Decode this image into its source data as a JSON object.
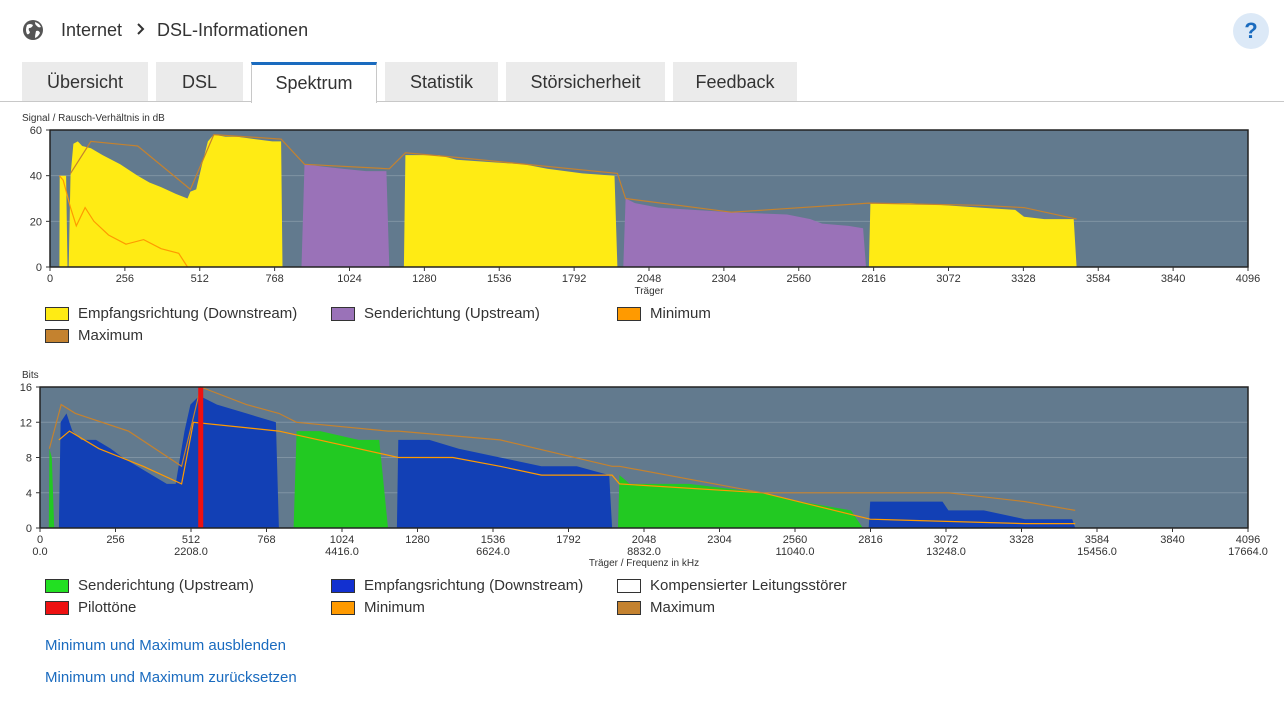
{
  "header": {
    "breadcrumb_root": "Internet",
    "breadcrumb_page": "DSL-Informationen",
    "help_label": "?"
  },
  "tabs": [
    {
      "label": "Übersicht",
      "active": false
    },
    {
      "label": "DSL",
      "active": false
    },
    {
      "label": "Spektrum",
      "active": true
    },
    {
      "label": "Statistik",
      "active": false
    },
    {
      "label": "Störsicherheit",
      "active": false
    },
    {
      "label": "Feedback",
      "active": false
    }
  ],
  "colors": {
    "plot_bg": "#627a8e",
    "downstream_snr": "#ffeb14",
    "upstream_snr": "#9a72b8",
    "minimum": "#ff9a00",
    "maximum": "#c4822f",
    "bits_upstream": "#22c922",
    "bits_downstream": "#1240b5",
    "pilot": "#ee1111",
    "compensated": "#ffffff",
    "link": "#1a6bbf"
  },
  "chart_data": [
    {
      "type": "area",
      "ylabel": "Signal / Rausch-Verhältnis in dB",
      "xlabel": "Träger",
      "xlim": [
        0,
        4096
      ],
      "ylim": [
        0,
        60
      ],
      "yticks": [
        0,
        20,
        40,
        60
      ],
      "xticks": [
        0,
        256,
        512,
        768,
        1024,
        1280,
        1536,
        1792,
        2048,
        2304,
        2560,
        2816,
        3072,
        3328,
        3584,
        3840,
        4096
      ],
      "series": [
        {
          "name": "Empfangsrichtung (Downstream)",
          "color": "#ffeb14",
          "points": [
            [
              32,
              0
            ],
            [
              33,
              40
            ],
            [
              55,
              40
            ],
            [
              60,
              0
            ],
            [
              64,
              0
            ],
            [
              70,
              40
            ],
            [
              80,
              54
            ],
            [
              95,
              55
            ],
            [
              110,
              53
            ],
            [
              140,
              52
            ],
            [
              180,
              49
            ],
            [
              240,
              45
            ],
            [
              300,
              40
            ],
            [
              340,
              37
            ],
            [
              380,
              35
            ],
            [
              430,
              32
            ],
            [
              470,
              30
            ],
            [
              480,
              33
            ],
            [
              500,
              34
            ],
            [
              520,
              45
            ],
            [
              540,
              55
            ],
            [
              560,
              58
            ],
            [
              600,
              57
            ],
            [
              640,
              57
            ],
            [
              700,
              56
            ],
            [
              760,
              55
            ],
            [
              790,
              55
            ],
            [
              795,
              0
            ]
          ]
        },
        {
          "name": "Senderichtung (Upstream)",
          "color": "#9a72b8",
          "points": [
            [
              860,
              0
            ],
            [
              870,
              45
            ],
            [
              930,
              44
            ],
            [
              1000,
              43
            ],
            [
              1080,
              42
            ],
            [
              1150,
              42
            ],
            [
              1160,
              0
            ]
          ]
        },
        {
          "name": "Empfangsrichtung (Downstream)",
          "color": "#ffeb14",
          "points": [
            [
              1210,
              0
            ],
            [
              1215,
              49
            ],
            [
              1330,
              49
            ],
            [
              1390,
              47
            ],
            [
              1500,
              46
            ],
            [
              1620,
              45
            ],
            [
              1700,
              43
            ],
            [
              1820,
              41
            ],
            [
              1930,
              40
            ],
            [
              1940,
              0
            ]
          ]
        },
        {
          "name": "Senderichtung (Upstream)",
          "color": "#9a72b8",
          "points": [
            [
              1960,
              0
            ],
            [
              1968,
              30
            ],
            [
              2000,
              28
            ],
            [
              2080,
              26
            ],
            [
              2200,
              25
            ],
            [
              2330,
              24
            ],
            [
              2520,
              23
            ],
            [
              2600,
              21
            ],
            [
              2640,
              19
            ],
            [
              2730,
              18
            ],
            [
              2780,
              17
            ],
            [
              2790,
              0
            ]
          ]
        },
        {
          "name": "Empfangsrichtung (Downstream)",
          "color": "#ffeb14",
          "points": [
            [
              2800,
              0
            ],
            [
              2805,
              28
            ],
            [
              2940,
              28
            ],
            [
              3060,
              27
            ],
            [
              3180,
              26
            ],
            [
              3300,
              25
            ],
            [
              3330,
              22
            ],
            [
              3400,
              21
            ],
            [
              3500,
              21
            ],
            [
              3510,
              0
            ]
          ]
        }
      ],
      "minimum": [
        [
          32,
          40
        ],
        [
          45,
          38
        ],
        [
          70,
          26
        ],
        [
          90,
          18
        ],
        [
          120,
          26
        ],
        [
          150,
          20
        ],
        [
          200,
          14
        ],
        [
          260,
          10
        ],
        [
          320,
          12
        ],
        [
          380,
          8
        ],
        [
          440,
          6
        ],
        [
          470,
          0
        ]
      ],
      "maximum": [
        [
          70,
          41
        ],
        [
          140,
          55
        ],
        [
          300,
          53
        ],
        [
          480,
          34
        ],
        [
          560,
          58
        ],
        [
          790,
          56
        ],
        [
          870,
          45
        ],
        [
          1160,
          43
        ],
        [
          1215,
          50
        ],
        [
          1390,
          48
        ],
        [
          1940,
          41
        ],
        [
          1968,
          30
        ],
        [
          2330,
          24
        ],
        [
          2800,
          28
        ],
        [
          3180,
          27
        ],
        [
          3330,
          26
        ],
        [
          3510,
          21
        ]
      ]
    },
    {
      "type": "area",
      "ylabel": "Bits",
      "xlabel": "Träger / Frequenz in kHz",
      "xlim": [
        0,
        4096
      ],
      "ylim": [
        0,
        16
      ],
      "yticks": [
        0,
        4,
        8,
        12,
        16
      ],
      "xticks": [
        0,
        256,
        512,
        768,
        1024,
        1280,
        1536,
        1792,
        2048,
        2304,
        2560,
        2816,
        3072,
        3328,
        3584,
        3840,
        4096
      ],
      "freq_ticks": [
        [
          0,
          "0.0"
        ],
        [
          512,
          "2208.0"
        ],
        [
          1024,
          "4416.0"
        ],
        [
          1536,
          "6624.0"
        ],
        [
          2048,
          "8832.0"
        ],
        [
          2560,
          "11040.0"
        ],
        [
          3072,
          "13248.0"
        ],
        [
          3584,
          "15456.0"
        ],
        [
          4096,
          "17664.0"
        ]
      ],
      "series": [
        {
          "name": "Senderichtung (Upstream)",
          "color": "#22c922",
          "points": [
            [
              30,
              0
            ],
            [
              32,
              9
            ],
            [
              40,
              8
            ],
            [
              48,
              0
            ]
          ]
        },
        {
          "name": "Empfangsrichtung (Downstream)",
          "color": "#1240b5",
          "points": [
            [
              64,
              0
            ],
            [
              70,
              12
            ],
            [
              90,
              13
            ],
            [
              110,
              11
            ],
            [
              140,
              10
            ],
            [
              190,
              10
            ],
            [
              240,
              9
            ],
            [
              280,
              8
            ],
            [
              330,
              7
            ],
            [
              380,
              6
            ],
            [
              430,
              5
            ],
            [
              460,
              5
            ],
            [
              470,
              7
            ],
            [
              490,
              11
            ],
            [
              510,
              14
            ],
            [
              540,
              15
            ],
            [
              600,
              14
            ],
            [
              700,
              13
            ],
            [
              800,
              12
            ],
            [
              810,
              0
            ]
          ]
        },
        {
          "name": "Senderichtung (Upstream)",
          "color": "#22c922",
          "points": [
            [
              860,
              0
            ],
            [
              870,
              11
            ],
            [
              950,
              11
            ],
            [
              1080,
              10
            ],
            [
              1150,
              10
            ],
            [
              1180,
              0
            ]
          ]
        },
        {
          "name": "Empfangsrichtung (Downstream)",
          "color": "#1240b5",
          "points": [
            [
              1210,
              0
            ],
            [
              1215,
              10
            ],
            [
              1320,
              10
            ],
            [
              1420,
              9
            ],
            [
              1560,
              8
            ],
            [
              1700,
              7
            ],
            [
              1820,
              7
            ],
            [
              1930,
              6
            ],
            [
              1940,
              0
            ]
          ]
        },
        {
          "name": "Senderichtung (Upstream)",
          "color": "#22c922",
          "points": [
            [
              1960,
              0
            ],
            [
              1965,
              6
            ],
            [
              2000,
              5
            ],
            [
              2200,
              5
            ],
            [
              2450,
              4
            ],
            [
              2580,
              3
            ],
            [
              2750,
              2
            ],
            [
              2790,
              0
            ]
          ]
        },
        {
          "name": "Empfangsrichtung (Downstream)",
          "color": "#1240b5",
          "points": [
            [
              2810,
              0
            ],
            [
              2815,
              3
            ],
            [
              3060,
              3
            ],
            [
              3080,
              2
            ],
            [
              3200,
              2
            ],
            [
              3340,
              1
            ],
            [
              3500,
              1
            ],
            [
              3510,
              0
            ]
          ]
        }
      ],
      "pilot": {
        "name": "Pilottöne",
        "x": 545
      },
      "minimum": [
        [
          64,
          10
        ],
        [
          100,
          11
        ],
        [
          200,
          9
        ],
        [
          350,
          7
        ],
        [
          480,
          5
        ],
        [
          520,
          12
        ],
        [
          810,
          11
        ],
        [
          1215,
          8
        ],
        [
          1400,
          8
        ],
        [
          1560,
          7
        ],
        [
          1700,
          6
        ],
        [
          1940,
          6
        ],
        [
          1965,
          5
        ],
        [
          2450,
          4
        ],
        [
          2815,
          1
        ],
        [
          3340,
          0.5
        ],
        [
          3510,
          0.5
        ]
      ],
      "maximum": [
        [
          32,
          9
        ],
        [
          72,
          14
        ],
        [
          120,
          13
        ],
        [
          300,
          11
        ],
        [
          480,
          7
        ],
        [
          545,
          16
        ],
        [
          700,
          14
        ],
        [
          810,
          13
        ],
        [
          870,
          12
        ],
        [
          1180,
          11
        ],
        [
          1215,
          11
        ],
        [
          1560,
          10
        ],
        [
          1940,
          7
        ],
        [
          1965,
          7
        ],
        [
          2450,
          4
        ],
        [
          2815,
          4
        ],
        [
          3080,
          4
        ],
        [
          3340,
          3
        ],
        [
          3510,
          2
        ]
      ]
    }
  ],
  "legend1": [
    {
      "label": "Empfangsrichtung (Downstream)",
      "color": "#ffeb14"
    },
    {
      "label": "Senderichtung (Upstream)",
      "color": "#9a72b8"
    },
    {
      "label": "Minimum",
      "color": "#ff9a00"
    },
    {
      "label": "Maximum",
      "color": "#c4822f"
    }
  ],
  "legend2": [
    {
      "label": "Senderichtung (Upstream)",
      "color": "#22e022"
    },
    {
      "label": "Empfangsrichtung (Downstream)",
      "color": "#1230d0"
    },
    {
      "label": "Kompensierter Leitungsstörer",
      "color": "#ffffff"
    },
    {
      "label": "Pilottöne",
      "color": "#ee1111"
    },
    {
      "label": "Minimum",
      "color": "#ff9a00"
    },
    {
      "label": "Maximum",
      "color": "#c4822f"
    }
  ],
  "links": {
    "hide_minmax": "Minimum und Maximum ausblenden",
    "reset_minmax": "Minimum und Maximum zurücksetzen"
  }
}
